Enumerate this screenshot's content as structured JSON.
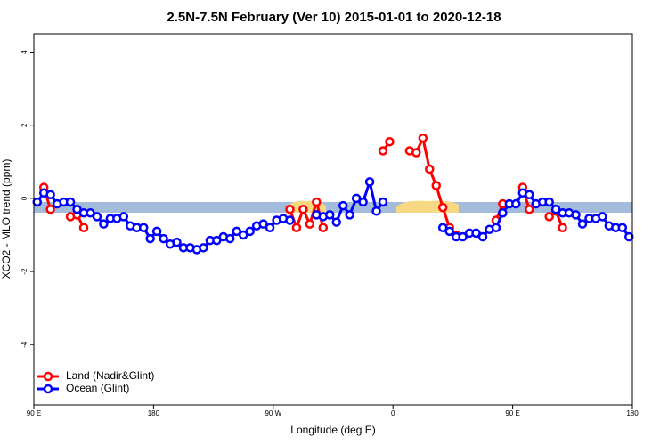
{
  "chart_data": {
    "type": "line",
    "title": "2.5N-7.5N February (Ver 10)   2015-01-01 to 2020-12-18",
    "x_label": "Longitude (deg E)",
    "y_label": "XCO2 - MLO trend (ppm)",
    "xlim": [
      90,
      540
    ],
    "ylim": [
      -5.65,
      4.5
    ],
    "xticks": [
      {
        "value": 90,
        "label": "90 E"
      },
      180,
      {
        "value": 270,
        "label": "90 W"
      },
      {
        "value": 360,
        "label": "0"
      },
      {
        "value": 450,
        "label": "90 E"
      },
      {
        "value": 540,
        "label": "180"
      }
    ],
    "yticks": [
      -4,
      -2,
      0,
      2,
      4
    ],
    "legend": "bottom-left",
    "x": [
      92.5,
      97.5,
      102.5,
      107.5,
      112.5,
      117.5,
      122.5,
      127.5,
      132.5,
      137.5,
      142.5,
      147.5,
      152.5,
      157.5,
      162.5,
      167.5,
      172.5,
      177.5,
      182.5,
      187.5,
      192.5,
      197.5,
      202.5,
      207.5,
      212.5,
      217.5,
      222.5,
      227.5,
      232.5,
      237.5,
      242.5,
      247.5,
      252.5,
      257.5,
      262.5,
      267.5,
      272.5,
      277.5,
      282.5,
      287.5,
      292.5,
      297.5,
      302.5,
      307.5,
      312.5,
      317.5,
      322.5,
      327.5,
      332.5,
      337.5,
      342.5,
      347.5,
      352.5,
      357.5,
      362.5,
      367.5,
      372.5,
      377.5,
      382.5,
      387.5,
      392.5,
      397.5,
      402.5,
      407.5,
      412.5,
      417.5,
      422.5,
      427.5,
      432.5,
      437.5,
      442.5,
      447.5,
      452.5,
      457.5,
      462.5,
      467.5,
      472.5,
      477.5,
      482.5,
      487.5,
      492.5,
      497.5,
      502.5,
      507.5,
      512.5,
      517.5,
      522.5,
      527.5,
      532.5,
      537.5
    ],
    "series": [
      {
        "name": "Land (Nadir&Glint)",
        "color": "#ff0000",
        "values": [
          null,
          0.3,
          -0.3,
          null,
          null,
          -0.5,
          -0.45,
          -0.8,
          null,
          null,
          null,
          null,
          null,
          null,
          null,
          null,
          null,
          null,
          null,
          null,
          null,
          null,
          null,
          null,
          null,
          null,
          null,
          null,
          null,
          null,
          null,
          null,
          null,
          null,
          null,
          null,
          null,
          null,
          -0.3,
          -0.8,
          -0.3,
          -0.7,
          -0.1,
          -0.8,
          null,
          null,
          null,
          null,
          null,
          null,
          null,
          null,
          1.3,
          1.55,
          null,
          null,
          1.3,
          1.25,
          1.65,
          0.8,
          0.35,
          -0.25,
          -0.8,
          -1.0,
          null,
          null,
          null,
          null,
          null,
          -0.6,
          -0.15,
          null,
          null,
          0.3,
          -0.3,
          null,
          null,
          -0.5,
          -0.35,
          -0.8,
          null,
          null,
          null,
          null,
          null,
          null,
          null,
          null,
          null,
          null
        ]
      },
      {
        "name": "Ocean (Glint)",
        "color": "#0000ff",
        "values": [
          -0.1,
          0.15,
          0.1,
          -0.15,
          -0.1,
          -0.1,
          -0.3,
          -0.4,
          -0.4,
          -0.5,
          -0.7,
          -0.55,
          -0.55,
          -0.5,
          -0.75,
          -0.8,
          -0.8,
          -1.1,
          -0.9,
          -1.1,
          -1.25,
          -1.2,
          -1.35,
          -1.35,
          -1.4,
          -1.35,
          -1.15,
          -1.15,
          -1.05,
          -1.1,
          -0.9,
          -1.0,
          -0.9,
          -0.75,
          -0.7,
          -0.8,
          -0.6,
          -0.55,
          -0.6,
          null,
          null,
          null,
          -0.45,
          -0.5,
          -0.45,
          -0.65,
          -0.2,
          -0.45,
          0,
          -0.1,
          0.45,
          -0.35,
          -0.1,
          null,
          null,
          null,
          null,
          null,
          null,
          null,
          null,
          -0.8,
          -0.9,
          -1.05,
          -1.05,
          -0.95,
          -0.95,
          -1.05,
          -0.85,
          -0.8,
          -0.4,
          -0.15,
          -0.15,
          0.15,
          0.1,
          -0.15,
          -0.1,
          -0.1,
          -0.3,
          -0.4,
          -0.4,
          -0.45,
          -0.7,
          -0.55,
          -0.55,
          -0.5,
          -0.75,
          -0.8,
          -0.8,
          -1.05
        ]
      }
    ]
  }
}
